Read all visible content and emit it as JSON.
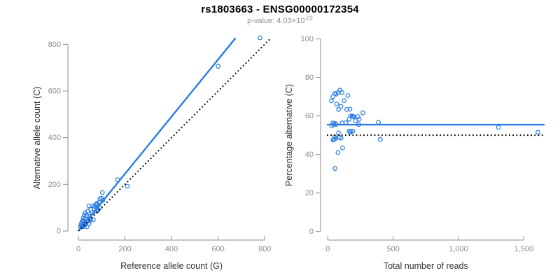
{
  "header": {
    "title": "rs1803663 - ENSG00000172354",
    "pvalue_label": "p-value: 4.03×10",
    "pvalue_exponent": "-22"
  },
  "colors": {
    "accent_blue": "#2b7de2",
    "identity_black": "#000000",
    "axis_gray": "#8c8c8c",
    "axis_title_dark": "#333333"
  },
  "chart_data": [
    {
      "type": "scatter",
      "name": "allele-counts-scatter",
      "xlabel": "Reference allele count (G)",
      "ylabel": "Alternative allele count (C)",
      "xlim": [
        0,
        840
      ],
      "ylim": [
        0,
        850
      ],
      "grid": false,
      "xticks": [
        0,
        200,
        400,
        600,
        800
      ],
      "xtick_labels": [
        "0",
        "200",
        "400",
        "600",
        "800"
      ],
      "yticks": [
        0,
        200,
        400,
        600,
        800
      ],
      "ytick_labels": [
        "0",
        "200",
        "400",
        "600",
        "800"
      ],
      "point_color": "#2b7de2",
      "points": [
        [
          780,
          828
        ],
        [
          600,
          706
        ],
        [
          210,
          192
        ],
        [
          168,
          220
        ],
        [
          103,
          165
        ],
        [
          100,
          140
        ],
        [
          93,
          138
        ],
        [
          105,
          131
        ],
        [
          77,
          115
        ],
        [
          62,
          108
        ],
        [
          45,
          108
        ],
        [
          68,
          95
        ],
        [
          53,
          92
        ],
        [
          83,
          88
        ],
        [
          40,
          85
        ],
        [
          30,
          78
        ],
        [
          60,
          78
        ],
        [
          25,
          69
        ],
        [
          35,
          65
        ],
        [
          48,
          62
        ],
        [
          22,
          57
        ],
        [
          30,
          52
        ],
        [
          18,
          45
        ],
        [
          23,
          45
        ],
        [
          40,
          42
        ],
        [
          15,
          38
        ],
        [
          25,
          32
        ],
        [
          12,
          28
        ],
        [
          17,
          22
        ],
        [
          9,
          19
        ],
        [
          37,
          18
        ],
        [
          46,
          32
        ],
        [
          64,
          49
        ],
        [
          27,
          26
        ],
        [
          32,
          30
        ],
        [
          45,
          43
        ],
        [
          52,
          49
        ],
        [
          90,
          122
        ],
        [
          70,
          105
        ],
        [
          75,
          112
        ],
        [
          80,
          118
        ],
        [
          92,
          100
        ],
        [
          85,
          92
        ],
        [
          78,
          85
        ],
        [
          20,
          25
        ],
        [
          28,
          35
        ],
        [
          14,
          17
        ],
        [
          21,
          19
        ],
        [
          26,
          24
        ],
        [
          23,
          21
        ]
      ],
      "lines": [
        {
          "name": "fit-line",
          "style": "solid",
          "color": "#2b7de2",
          "from": [
            0,
            0
          ],
          "to": [
            675,
            827
          ]
        },
        {
          "name": "identity-line",
          "style": "dotted",
          "color": "#000000",
          "from": [
            0,
            0
          ],
          "to": [
            822,
            822
          ]
        }
      ]
    },
    {
      "type": "scatter",
      "name": "percentage-vs-reads-scatter",
      "xlabel": "Total number of reads",
      "ylabel": "Percentage alternative (C)",
      "xlim": [
        0,
        1660
      ],
      "ylim": [
        0,
        100
      ],
      "grid": false,
      "xticks": [
        0,
        500,
        1000,
        1500
      ],
      "xtick_labels": [
        "0",
        "500",
        "1,000",
        "1,500"
      ],
      "yticks": [
        0,
        20,
        40,
        60,
        80,
        100
      ],
      "ytick_labels": [
        "0",
        "20",
        "40",
        "60",
        "80",
        "100"
      ],
      "point_color": "#2b7de2",
      "points": [
        [
          1608,
          51.5
        ],
        [
          1306,
          54.1
        ],
        [
          402,
          47.8
        ],
        [
          388,
          56.7
        ],
        [
          268,
          61.6
        ],
        [
          240,
          58.3
        ],
        [
          231,
          59.7
        ],
        [
          236,
          55.5
        ],
        [
          192,
          59.9
        ],
        [
          170,
          63.5
        ],
        [
          153,
          70.6
        ],
        [
          163,
          58.3
        ],
        [
          145,
          63.4
        ],
        [
          171,
          51.5
        ],
        [
          125,
          68.0
        ],
        [
          108,
          72.2
        ],
        [
          138,
          56.5
        ],
        [
          94,
          73.4
        ],
        [
          100,
          65.0
        ],
        [
          110,
          56.4
        ],
        [
          79,
          72.2
        ],
        [
          82,
          63.4
        ],
        [
          63,
          71.4
        ],
        [
          68,
          66.2
        ],
        [
          82,
          51.2
        ],
        [
          53,
          71.7
        ],
        [
          57,
          56.1
        ],
        [
          40,
          70.0
        ],
        [
          39,
          56.4
        ],
        [
          28,
          67.9
        ],
        [
          55,
          32.7
        ],
        [
          78,
          41.0
        ],
        [
          113,
          43.4
        ],
        [
          53,
          49.1
        ],
        [
          62,
          48.4
        ],
        [
          88,
          48.9
        ],
        [
          101,
          48.5
        ],
        [
          212,
          57.5
        ],
        [
          175,
          60.0
        ],
        [
          187,
          59.9
        ],
        [
          198,
          59.6
        ],
        [
          192,
          52.1
        ],
        [
          177,
          52.0
        ],
        [
          163,
          52.1
        ],
        [
          45,
          55.6
        ],
        [
          63,
          55.6
        ],
        [
          31,
          54.8
        ],
        [
          40,
          47.5
        ],
        [
          50,
          48.0
        ],
        [
          44,
          47.7
        ]
      ],
      "lines": [
        {
          "name": "fit-percentage-line",
          "style": "solid",
          "color": "#2b7de2",
          "y": 55.5
        },
        {
          "name": "fifty-percent-line",
          "style": "dotted",
          "color": "#000000",
          "y": 50
        }
      ]
    }
  ]
}
